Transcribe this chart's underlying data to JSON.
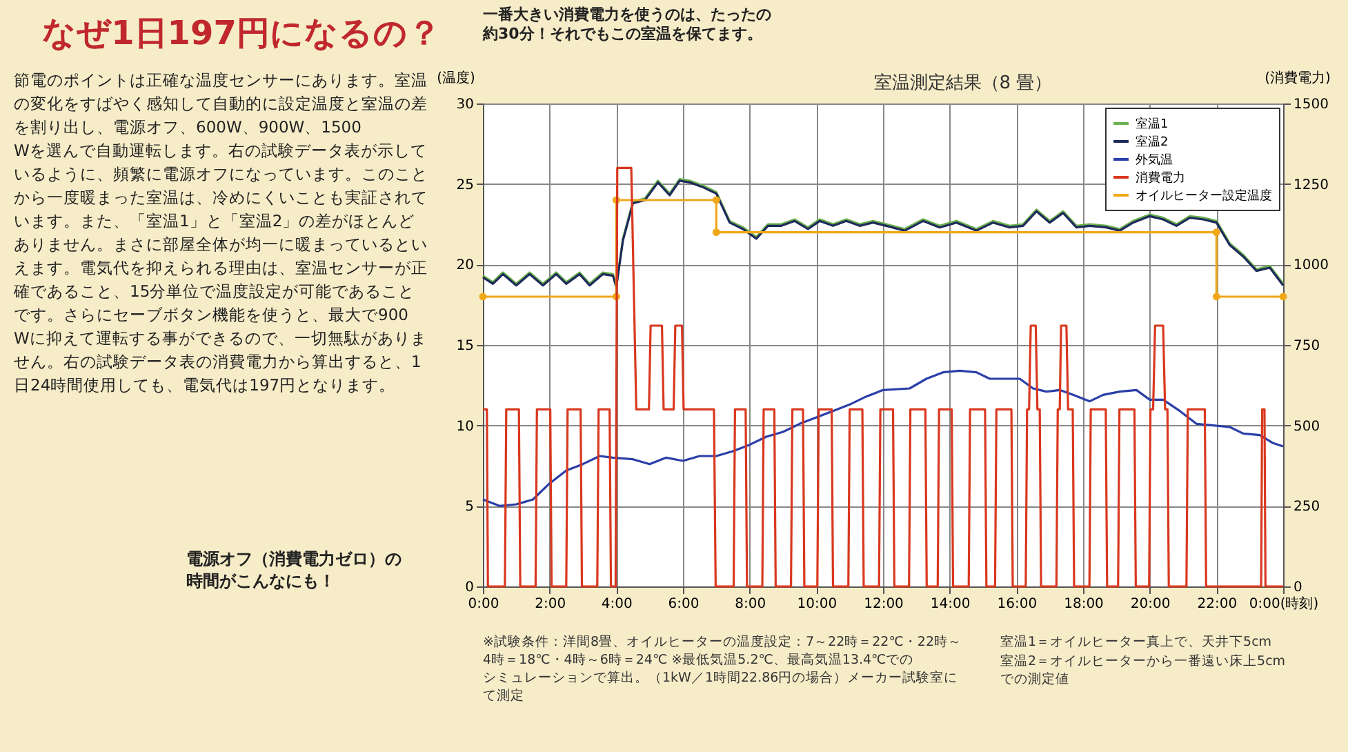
{
  "chart_data": {
    "type": "line",
    "title": "室温測定結果（8 畳）",
    "ylabel": "(温度)",
    "y2label": "(消費電力)",
    "xlim": [
      0,
      24
    ],
    "xticks": [
      {
        "value": 0,
        "label": "0:00"
      },
      {
        "value": 2,
        "label": "2:00"
      },
      {
        "value": 4,
        "label": "4:00"
      },
      {
        "value": 6,
        "label": "6:00"
      },
      {
        "value": 8,
        "label": "8:00"
      },
      {
        "value": 10,
        "label": "10:00"
      },
      {
        "value": 12,
        "label": "12:00"
      },
      {
        "value": 14,
        "label": "14:00"
      },
      {
        "value": 16,
        "label": "16:00"
      },
      {
        "value": 18,
        "label": "18:00"
      },
      {
        "value": 20,
        "label": "20:00"
      },
      {
        "value": 22,
        "label": "22:00"
      },
      {
        "value": 24,
        "label": "0:00(時刻)"
      }
    ],
    "ylim": [
      0,
      30
    ],
    "yticks": [
      0,
      5,
      10,
      15,
      20,
      25,
      30
    ],
    "y2lim": [
      0,
      1500
    ],
    "y2ticks": [
      0,
      250,
      500,
      750,
      1000,
      1250,
      1500
    ],
    "grid": true,
    "legend": "top right",
    "line_style": "solid",
    "series": [
      {
        "name": "室温1",
        "color": "#6ab04c",
        "x": [
          0,
          0.3,
          0.6,
          1.0,
          1.4,
          1.8,
          2.2,
          2.5,
          2.9,
          3.2,
          3.6,
          3.9,
          4.0,
          4.2,
          4.5,
          4.86,
          5.25,
          5.6,
          5.9,
          6.2,
          6.6,
          7.0,
          7.4,
          7.8,
          8.2,
          8.55,
          8.95,
          9.35,
          9.75,
          10.1,
          10.5,
          10.9,
          11.3,
          11.7,
          12.1,
          12.65,
          13.2,
          13.7,
          14.2,
          14.8,
          15.3,
          15.8,
          16.2,
          16.6,
          17.0,
          17.4,
          17.8,
          18.2,
          18.7,
          19.1,
          19.5,
          20.0,
          20.4,
          20.8,
          21.2,
          21.6,
          22.0,
          22.4,
          22.8,
          23.2,
          23.6,
          24
        ],
        "values": [
          19.3,
          18.9,
          19.5,
          18.8,
          19.5,
          18.8,
          19.5,
          18.9,
          19.5,
          18.8,
          19.5,
          19.4,
          18.6,
          21.6,
          23.9,
          24.1,
          25.2,
          24.4,
          25.3,
          25.2,
          24.9,
          24.5,
          22.7,
          22.3,
          21.7,
          22.5,
          22.5,
          22.8,
          22.3,
          22.8,
          22.5,
          22.8,
          22.5,
          22.7,
          22.5,
          22.2,
          22.8,
          22.4,
          22.7,
          22.2,
          22.7,
          22.4,
          22.5,
          23.4,
          22.7,
          23.3,
          22.4,
          22.5,
          22.4,
          22.2,
          22.7,
          23.1,
          22.9,
          22.5,
          23.0,
          22.9,
          22.7,
          21.3,
          20.6,
          19.7,
          19.9,
          18.8
        ]
      },
      {
        "name": "室温2",
        "color": "#1f2a5c",
        "x": [
          0,
          0.3,
          0.6,
          1.0,
          1.4,
          1.8,
          2.2,
          2.5,
          2.9,
          3.2,
          3.6,
          3.9,
          4.0,
          4.2,
          4.5,
          4.86,
          5.25,
          5.6,
          5.9,
          6.2,
          6.6,
          7.0,
          7.4,
          7.8,
          8.2,
          8.55,
          8.95,
          9.35,
          9.75,
          10.1,
          10.5,
          10.9,
          11.3,
          11.7,
          12.1,
          12.65,
          13.2,
          13.7,
          14.2,
          14.8,
          15.3,
          15.8,
          16.2,
          16.6,
          17.0,
          17.4,
          17.8,
          18.2,
          18.7,
          19.1,
          19.5,
          20.0,
          20.4,
          20.8,
          21.2,
          21.6,
          22.0,
          22.4,
          22.8,
          23.2,
          23.6,
          24
        ],
        "values": [
          19.2,
          18.8,
          19.4,
          18.7,
          19.4,
          18.7,
          19.4,
          18.8,
          19.4,
          18.7,
          19.4,
          19.3,
          18.6,
          21.5,
          23.8,
          24.0,
          25.1,
          24.3,
          25.2,
          25.1,
          24.8,
          24.4,
          22.6,
          22.2,
          21.6,
          22.4,
          22.4,
          22.7,
          22.2,
          22.7,
          22.4,
          22.7,
          22.4,
          22.6,
          22.4,
          22.1,
          22.7,
          22.3,
          22.6,
          22.1,
          22.6,
          22.3,
          22.4,
          23.3,
          22.6,
          23.2,
          22.3,
          22.4,
          22.3,
          22.1,
          22.6,
          23.0,
          22.8,
          22.4,
          22.9,
          22.8,
          22.6,
          21.2,
          20.5,
          19.6,
          19.8,
          18.7
        ]
      },
      {
        "name": "外気温",
        "color": "#2b3fa8",
        "x": [
          0,
          0.5,
          1.0,
          1.5,
          2.0,
          2.5,
          3.0,
          3.5,
          3.9,
          4.5,
          5.0,
          5.5,
          6.0,
          6.5,
          7.0,
          7.5,
          8.0,
          8.5,
          9.0,
          9.5,
          10.0,
          10.5,
          11.0,
          11.5,
          12.0,
          12.8,
          13.3,
          13.8,
          14.3,
          14.8,
          15.2,
          15.7,
          16.1,
          16.5,
          16.9,
          17.3,
          17.7,
          18.2,
          18.6,
          19.1,
          19.6,
          20.0,
          20.4,
          20.9,
          21.4,
          21.9,
          22.4,
          22.8,
          23.3,
          23.7,
          24
        ],
        "values": [
          5.4,
          5.0,
          5.1,
          5.4,
          6.4,
          7.2,
          7.6,
          8.1,
          8.0,
          7.9,
          7.6,
          8.0,
          7.8,
          8.1,
          8.1,
          8.4,
          8.8,
          9.3,
          9.6,
          10.1,
          10.5,
          10.9,
          11.3,
          11.8,
          12.2,
          12.3,
          12.9,
          13.3,
          13.4,
          13.3,
          12.9,
          12.9,
          12.9,
          12.3,
          12.1,
          12.2,
          11.9,
          11.5,
          11.9,
          12.1,
          12.2,
          11.6,
          11.6,
          10.9,
          10.1,
          10.0,
          9.9,
          9.5,
          9.4,
          8.9,
          8.7
        ]
      },
      {
        "name": "消費電力",
        "color": "#d9381e",
        "axis": "y2",
        "x": [
          0,
          0.12,
          0.15,
          0.66,
          0.7,
          1.08,
          1.12,
          1.58,
          1.62,
          2.02,
          2.06,
          2.5,
          2.54,
          2.93,
          2.97,
          3.43,
          3.47,
          3.8,
          3.84,
          3.98,
          4.03,
          4.45,
          4.6,
          4.98,
          5.03,
          5.37,
          5.42,
          5.72,
          5.77,
          5.97,
          6.02,
          6.93,
          6.98,
          7.52,
          7.56,
          7.88,
          7.92,
          8.38,
          8.42,
          8.74,
          8.78,
          9.24,
          9.28,
          9.6,
          9.64,
          10.03,
          10.07,
          10.46,
          10.5,
          10.96,
          11.0,
          11.38,
          11.42,
          11.88,
          11.92,
          12.3,
          12.34,
          12.78,
          12.82,
          13.27,
          13.31,
          13.64,
          13.68,
          14.06,
          14.1,
          14.57,
          14.61,
          15.06,
          15.1,
          15.36,
          15.4,
          15.85,
          15.89,
          16.28,
          16.32,
          16.38,
          16.43,
          16.58,
          16.63,
          16.7,
          16.74,
          17.2,
          17.24,
          17.3,
          17.34,
          17.5,
          17.55,
          17.69,
          17.73,
          18.19,
          18.23,
          18.68,
          18.72,
          19.05,
          19.09,
          19.54,
          19.58,
          19.98,
          20.02,
          20.1,
          20.16,
          20.4,
          20.46,
          20.53,
          20.57,
          21.1,
          21.14,
          21.65,
          21.69,
          23.34,
          23.37,
          23.44,
          23.47,
          24
        ],
        "values": [
          550,
          550,
          0,
          0,
          550,
          550,
          0,
          0,
          550,
          550,
          0,
          0,
          550,
          550,
          0,
          0,
          550,
          550,
          0,
          0,
          1300,
          1300,
          550,
          550,
          810,
          810,
          550,
          550,
          810,
          810,
          550,
          550,
          0,
          0,
          550,
          550,
          0,
          0,
          550,
          550,
          0,
          0,
          550,
          550,
          0,
          0,
          550,
          550,
          0,
          0,
          550,
          550,
          0,
          0,
          550,
          550,
          0,
          0,
          550,
          550,
          0,
          0,
          550,
          550,
          0,
          0,
          550,
          550,
          0,
          0,
          550,
          550,
          0,
          0,
          550,
          550,
          810,
          810,
          550,
          550,
          0,
          0,
          550,
          550,
          810,
          810,
          550,
          550,
          0,
          0,
          550,
          550,
          0,
          0,
          550,
          550,
          0,
          0,
          550,
          550,
          810,
          810,
          550,
          550,
          0,
          0,
          550,
          550,
          0,
          0,
          550,
          550,
          0,
          0
        ]
      },
      {
        "name": "オイルヒーター設定温度",
        "color": "#f0a818",
        "marker": "circle",
        "x": [
          0,
          4,
          4,
          7,
          7,
          22,
          22,
          24
        ],
        "values": [
          18,
          18,
          24,
          24,
          22,
          22,
          18,
          18
        ]
      }
    ],
    "annotations": [
      "なぜ1日197円になるの？",
      "節電のポイントは正確な温度センサーにあります。室温の変化をすばやく感知して自動的に設定温度と室温の差を割り出し、電源オフ、600W、900W、1500Wを選んで自動運転します。右の試験データ表が示しているように、頻繁に電源オフになっています。このことから一度暖まった室温は、冷めにくいことも実証されています。また、「室温1」と「室温2」の差がほとんどありません。まさに部屋全体が均一に暖まっているといえます。電気代を抑えられる理由は、室温センサーが正確であること、15分単位で温度設定が可能であることです。さらにセーブボタン機能を使うと、最大で900Wに抑えて運転する事ができるので、一切無駄がありません。右の試験データ表の消費電力から算出すると、1日24時間使用しても、電気代は197円となります。",
      "一番大きい消費電力を使うのは、たったの約30分！それでもこの室温を保てます。",
      "電源オフ（消費電力ゼロ）の時間がこんなにも！",
      "※試験条件：洋間8畳、オイルヒーターの温度設定：7～22時＝22℃・22時～4時＝18℃・4時～6時＝24℃ ※最低気温5.2℃、最高気温13.4℃でのシミュレーションで算出。（1kW／1時間22.86円の場合）メーカー試験室にて測定",
      "室温1＝オイルヒーター真上で、天井下5cm",
      "室温2＝オイルヒーターから一番遠い床上5cmでの測定値"
    ]
  }
}
